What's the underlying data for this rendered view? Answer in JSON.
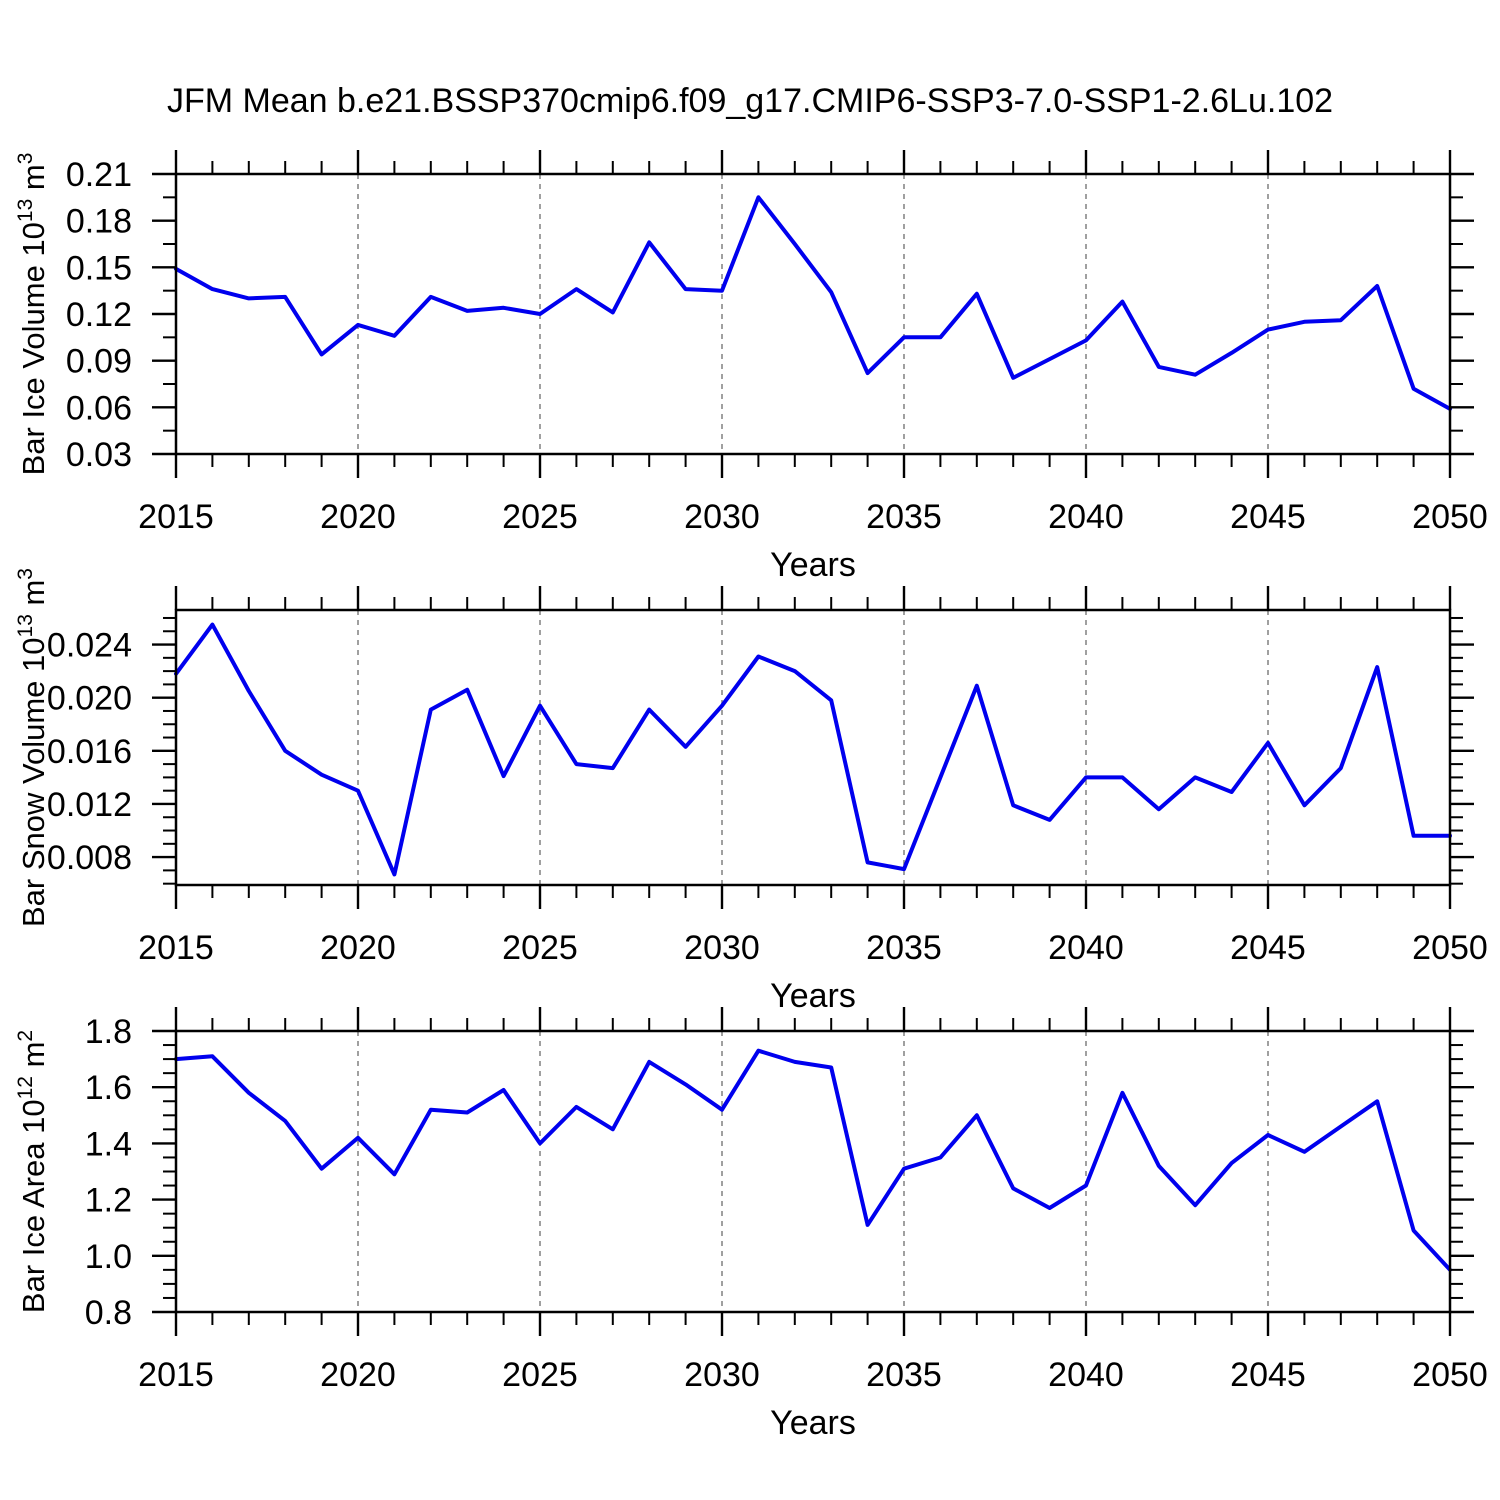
{
  "title": "JFM Mean b.e21.BSSP370cmip6.f09_g17.CMIP6-SSP3-7.0-SSP1-2.6Lu.102",
  "colors": {
    "line": "#0000ee",
    "grid": "#808080",
    "axis": "#000000",
    "background": "#ffffff"
  },
  "x": {
    "label": "Years",
    "min": 2015,
    "max": 2050,
    "tick_years": [
      2015,
      2020,
      2025,
      2030,
      2035,
      2040,
      2045,
      2050
    ],
    "tick_labels": [
      "2015",
      "2020",
      "2025",
      "2030",
      "2035",
      "2040",
      "2045",
      "2050"
    ],
    "minor_step": 1,
    "grid_years": [
      2020,
      2025,
      2030,
      2035,
      2040,
      2045
    ],
    "years": [
      2015,
      2016,
      2017,
      2018,
      2019,
      2020,
      2021,
      2022,
      2023,
      2024,
      2025,
      2026,
      2027,
      2028,
      2029,
      2030,
      2031,
      2032,
      2033,
      2034,
      2035,
      2036,
      2037,
      2038,
      2039,
      2040,
      2041,
      2042,
      2043,
      2044,
      2045,
      2046,
      2047,
      2048,
      2049,
      2050
    ]
  },
  "chart_data": [
    {
      "type": "line",
      "name": "bar-ice-volume",
      "ylabel": "Bar Ice Volume 10^13 m^3",
      "ylabel_rich": [
        {
          "t": "Bar Ice Volume 10"
        },
        {
          "t": "13",
          "sup": true
        },
        {
          "t": " m"
        },
        {
          "t": "3",
          "sup": true
        }
      ],
      "xlabel": "Years",
      "ylim": [
        0.03,
        0.21
      ],
      "yticks": [
        0.03,
        0.06,
        0.09,
        0.12,
        0.15,
        0.18,
        0.21
      ],
      "ytick_labels": [
        "0.03",
        "0.06",
        "0.09",
        "0.12",
        "0.15",
        "0.18",
        "0.21"
      ],
      "yminor_step": 0.015,
      "grid": "x-dashed",
      "legend": "none",
      "values": [
        0.149,
        0.136,
        0.13,
        0.131,
        0.094,
        0.113,
        0.106,
        0.131,
        0.122,
        0.124,
        0.12,
        0.136,
        0.121,
        0.166,
        0.136,
        0.135,
        0.195,
        0.165,
        0.134,
        0.082,
        0.105,
        0.105,
        0.133,
        0.079,
        0.091,
        0.103,
        0.128,
        0.086,
        0.081,
        0.095,
        0.11,
        0.115,
        0.116,
        0.138,
        0.072,
        0.059
      ]
    },
    {
      "type": "line",
      "name": "bar-snow-volume",
      "ylabel": "Bar Snow Volume 10^13 m^3",
      "ylabel_rich": [
        {
          "t": "Bar Snow Volume 10"
        },
        {
          "t": "13",
          "sup": true
        },
        {
          "t": " m"
        },
        {
          "t": "3",
          "sup": true
        }
      ],
      "xlabel": "Years",
      "ylim": [
        0.0059,
        0.0266
      ],
      "yticks": [
        0.008,
        0.012,
        0.016,
        0.02,
        0.024
      ],
      "ytick_labels": [
        "0.008",
        "0.012",
        "0.016",
        "0.020",
        "0.024"
      ],
      "yminor_step": 0.001,
      "grid": "x-dashed",
      "legend": "none",
      "values": [
        0.0218,
        0.0255,
        0.0205,
        0.016,
        0.0142,
        0.013,
        0.0067,
        0.0191,
        0.0206,
        0.0141,
        0.0194,
        0.015,
        0.0147,
        0.0191,
        0.0163,
        0.0194,
        0.0231,
        0.022,
        0.0198,
        0.0076,
        0.0071,
        0.014,
        0.0209,
        0.0119,
        0.0108,
        0.014,
        0.014,
        0.0116,
        0.014,
        0.0129,
        0.0166,
        0.0119,
        0.0147,
        0.0223,
        0.0096,
        0.0096
      ]
    },
    {
      "type": "line",
      "name": "bar-ice-area",
      "ylabel": "Bar Ice Area 10^12 m^2",
      "ylabel_rich": [
        {
          "t": "Bar Ice Area 10"
        },
        {
          "t": "12",
          "sup": true
        },
        {
          "t": " m"
        },
        {
          "t": "2",
          "sup": true
        }
      ],
      "xlabel": "Years",
      "ylim": [
        0.8,
        1.8
      ],
      "yticks": [
        0.8,
        1.0,
        1.2,
        1.4,
        1.6,
        1.8
      ],
      "ytick_labels": [
        "0.8",
        "1.0",
        "1.2",
        "1.4",
        "1.6",
        "1.8"
      ],
      "yminor_step": 0.05,
      "grid": "x-dashed",
      "legend": "none",
      "values": [
        1.7,
        1.71,
        1.58,
        1.48,
        1.31,
        1.42,
        1.29,
        1.52,
        1.51,
        1.59,
        1.4,
        1.53,
        1.45,
        1.69,
        1.61,
        1.52,
        1.73,
        1.69,
        1.67,
        1.11,
        1.31,
        1.35,
        1.5,
        1.24,
        1.17,
        1.25,
        1.58,
        1.32,
        1.18,
        1.33,
        1.43,
        1.37,
        1.46,
        1.55,
        1.09,
        0.95
      ]
    }
  ]
}
